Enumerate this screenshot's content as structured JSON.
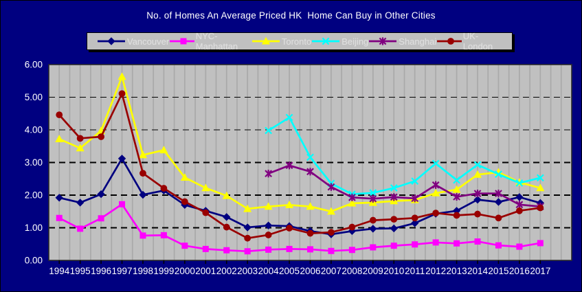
{
  "title": "No. of Homes An Average Priced HK  Home Can Buy in Other Cities",
  "chart_data": {
    "type": "line",
    "title": "No. of Homes An Average Priced HK  Home Can Buy in Other Cities",
    "categories": [
      "1994",
      "1995",
      "1996",
      "1997",
      "1998",
      "1999",
      "2000",
      "2001",
      "2002",
      "2003",
      "2004",
      "2005",
      "2006",
      "2007",
      "2008",
      "2009",
      "2010",
      "2011",
      "2012",
      "2013",
      "2014",
      "2015",
      "2016",
      "2017"
    ],
    "series": [
      {
        "name": "Vancouver",
        "color": "#000080",
        "marker": "diamond",
        "values": [
          1.92,
          1.77,
          2.03,
          3.12,
          2.01,
          2.14,
          1.7,
          1.52,
          1.33,
          1.01,
          1.07,
          1.05,
          0.9,
          0.8,
          0.9,
          0.97,
          0.98,
          1.14,
          1.43,
          1.52,
          1.86,
          1.79,
          1.94,
          1.76
        ]
      },
      {
        "name": "NYC-Manhattan",
        "color": "#FF00FF",
        "marker": "square",
        "values": [
          1.3,
          0.97,
          1.29,
          1.72,
          0.76,
          0.77,
          0.45,
          0.35,
          0.31,
          0.28,
          0.33,
          0.35,
          0.34,
          0.29,
          0.32,
          0.4,
          0.45,
          0.49,
          0.55,
          0.52,
          0.58,
          0.46,
          0.42,
          0.53
        ]
      },
      {
        "name": "Toronto",
        "color": "#FFFF00",
        "marker": "triangle",
        "values": [
          3.72,
          3.44,
          3.97,
          5.63,
          3.23,
          3.38,
          2.54,
          2.22,
          1.98,
          1.58,
          1.65,
          1.7,
          1.65,
          1.5,
          1.75,
          1.77,
          1.82,
          1.85,
          2.06,
          2.17,
          2.63,
          2.7,
          2.39,
          2.22
        ]
      },
      {
        "name": "Beijing",
        "color": "#00FFFF",
        "marker": "x",
        "values": [
          null,
          null,
          null,
          null,
          null,
          null,
          null,
          null,
          null,
          null,
          3.98,
          4.38,
          3.16,
          2.36,
          2.03,
          2.07,
          2.22,
          2.43,
          2.97,
          2.46,
          2.93,
          2.64,
          2.37,
          2.53
        ]
      },
      {
        "name": "Shanghai",
        "color": "#800080",
        "marker": "star",
        "values": [
          null,
          null,
          null,
          null,
          null,
          null,
          null,
          null,
          null,
          null,
          2.66,
          2.91,
          2.72,
          2.25,
          1.93,
          1.89,
          1.94,
          1.9,
          2.31,
          1.95,
          2.05,
          2.05,
          1.71,
          1.65
        ]
      },
      {
        "name": "UK-London",
        "color": "#990000",
        "marker": "circle",
        "values": [
          4.46,
          3.74,
          3.79,
          5.11,
          2.67,
          2.21,
          1.8,
          1.46,
          1.02,
          0.68,
          0.78,
          0.99,
          0.83,
          0.86,
          1.02,
          1.23,
          1.26,
          1.3,
          1.45,
          1.38,
          1.42,
          1.3,
          1.52,
          1.61
        ]
      }
    ],
    "xlabel": "",
    "ylabel": "",
    "ylim": [
      0,
      6
    ],
    "ytick_step": 1,
    "ytick_labels": [
      "0.00",
      "1.00",
      "2.00",
      "3.00",
      "4.00",
      "5.00",
      "6.00"
    ],
    "legend_position": "top",
    "grid": {
      "horizontal": "black-dashed",
      "vertical": "gray-solid-half-category"
    },
    "colors": {
      "background": "#000080",
      "plot_background": "#C0C0C0",
      "vertical_grid": "#A9A9A9",
      "horizontal_grid": "#000000",
      "plot_border": "#2B2B2B",
      "axis_text": "#FFFFFF",
      "title_text": "#FFFFFF",
      "legend_background": "#C0C0C0",
      "legend_text": "#DFDFDF",
      "legend_border": "#000000"
    }
  }
}
